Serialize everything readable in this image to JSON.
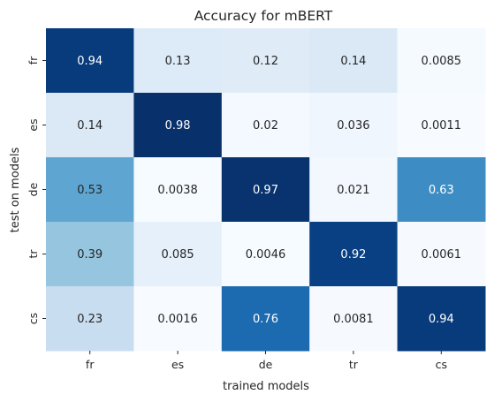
{
  "chart_data": {
    "type": "heatmap",
    "title": "Accuracy for mBERT",
    "xlabel": "trained models",
    "ylabel": "test on models",
    "x_categories": [
      "fr",
      "es",
      "de",
      "tr",
      "cs"
    ],
    "y_categories": [
      "fr",
      "es",
      "de",
      "tr",
      "cs"
    ],
    "values": [
      [
        0.94,
        0.13,
        0.12,
        0.14,
        0.0085
      ],
      [
        0.14,
        0.98,
        0.02,
        0.036,
        0.0011
      ],
      [
        0.53,
        0.0038,
        0.97,
        0.021,
        0.63
      ],
      [
        0.39,
        0.085,
        0.0046,
        0.92,
        0.0061
      ],
      [
        0.23,
        0.0016,
        0.76,
        0.0081,
        0.94
      ]
    ],
    "value_labels": [
      [
        "0.94",
        "0.13",
        "0.12",
        "0.14",
        "0.0085"
      ],
      [
        "0.14",
        "0.98",
        "0.02",
        "0.036",
        "0.0011"
      ],
      [
        "0.53",
        "0.0038",
        "0.97",
        "0.021",
        "0.63"
      ],
      [
        "0.39",
        "0.085",
        "0.0046",
        "0.92",
        "0.0061"
      ],
      [
        "0.23",
        "0.0016",
        "0.76",
        "0.0081",
        "0.94"
      ]
    ],
    "colormap": "Blues",
    "vmin": 0.0011,
    "vmax": 0.98,
    "colorbar": false
  },
  "colors": {
    "text_dark": "#262626",
    "text_light": "#ffffff",
    "cmap_stops": [
      "#f7fbff",
      "#deebf7",
      "#c6dbef",
      "#9ecae1",
      "#6baed6",
      "#4292c6",
      "#2171b5",
      "#08519c",
      "#08306b"
    ]
  }
}
